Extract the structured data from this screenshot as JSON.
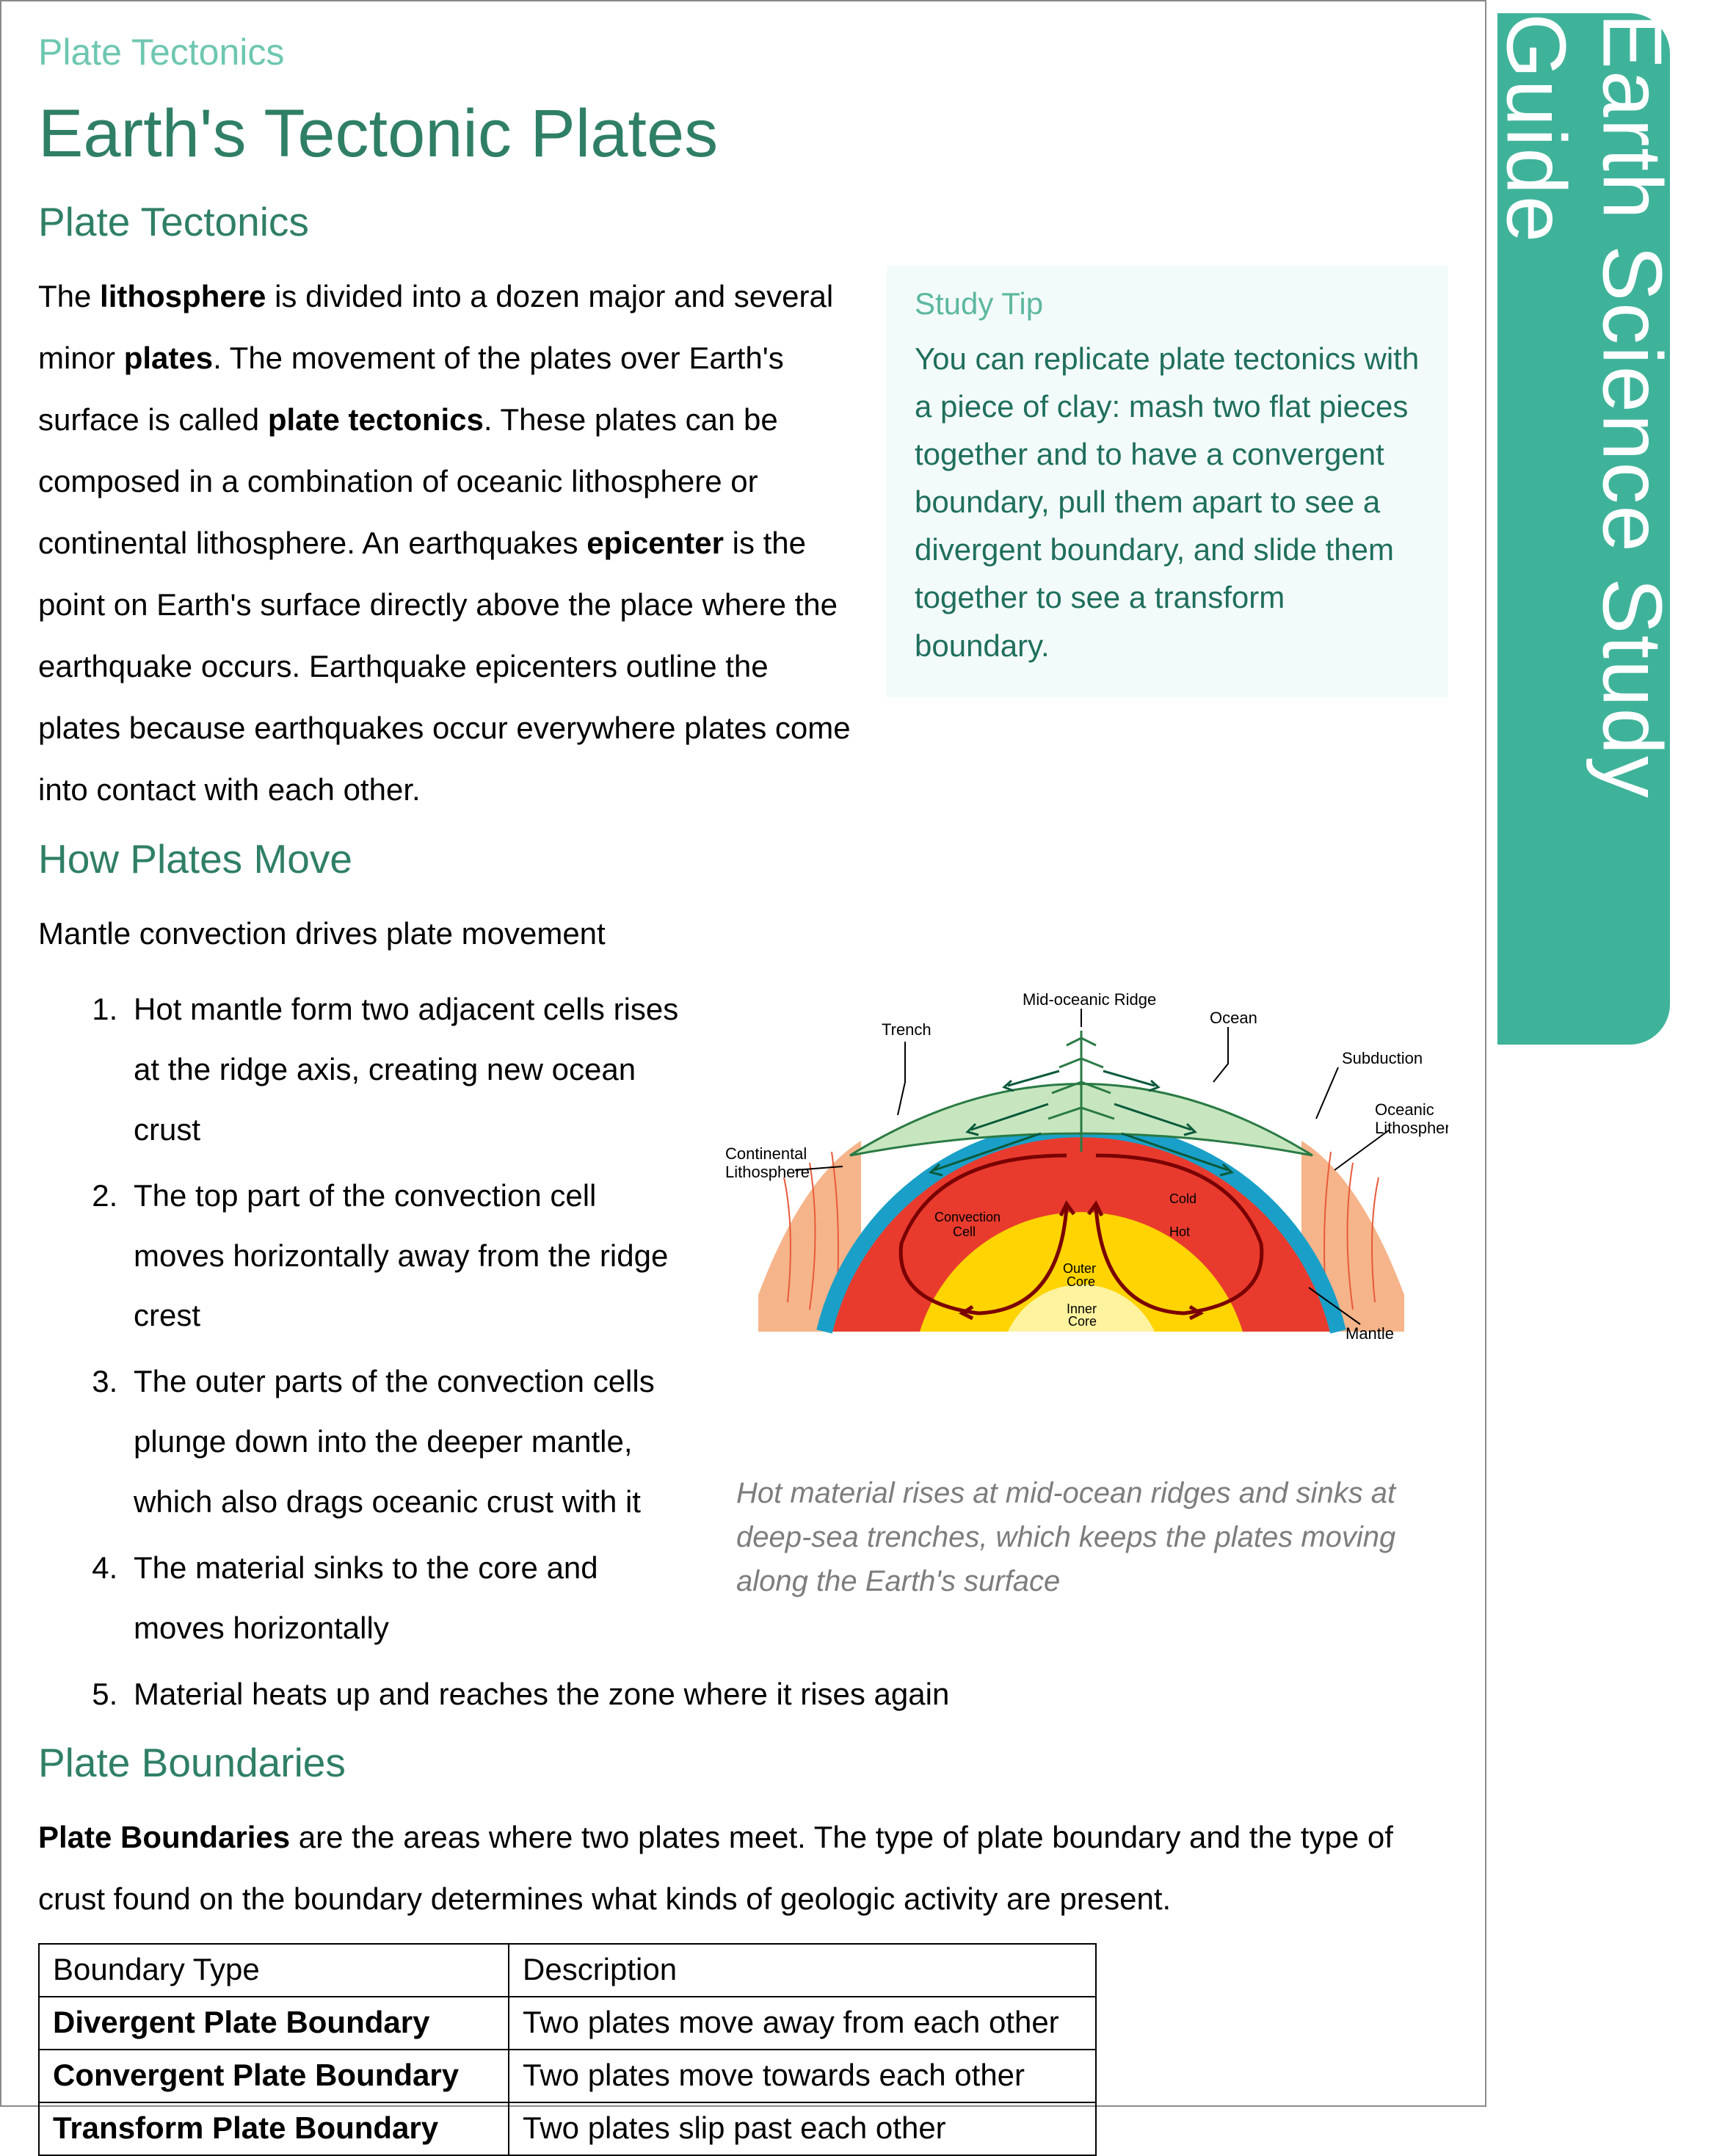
{
  "sideTab": "Earth Science Study Guide",
  "kicker": "Plate Tectonics",
  "title": "Earth's Tectonic Plates",
  "sections": {
    "s1_title": "Plate Tectonics",
    "s1_body_html": "The <b>lithosphere</b> is divided into a dozen major and several minor <b>plates</b>. The movement of the plates over Earth's surface is called <b>plate tectonics</b>. These plates can be composed in a combination of oceanic lithosphere or continental lithosphere. An earthquakes <b>epicenter</b> is the point on Earth's surface directly above the place where the earthquake occurs. Earthquake epicenters outline the plates because earthquakes occur everywhere plates come into contact with each other.",
    "s2_title": "How Plates Move",
    "s2_intro": "Mantle convection drives plate movement",
    "s2_steps": [
      "Hot mantle form two adjacent cells rises at the ridge axis, creating new ocean crust",
      "The top part of the convection cell moves horizontally away from the ridge crest",
      "The outer parts of the convection cells plunge down into the deeper mantle, which also drags oceanic crust with it",
      "The material sinks to the core and moves horizontally",
      "Material heats up and reaches the zone where it rises again"
    ],
    "s3_title": "Plate Boundaries",
    "s3_body_html": "<b>Plate Boundaries</b> are the areas where two plates meet. The type of plate boundary and the type of crust found on the boundary determines what kinds of geologic activity are present."
  },
  "tip": {
    "title": "Study Tip",
    "text": "You can replicate plate tectonics with a piece of clay: mash two flat pieces together and to have a convergent boundary, pull them apart to see a divergent boundary, and slide them together to see a transform boundary."
  },
  "figure": {
    "caption": "Hot material rises at mid-ocean ridges and sinks at deep-sea trenches, which keeps the plates moving along the Earth's surface",
    "labels": {
      "trench": "Trench",
      "mid_ridge": "Mid-oceanic Ridge",
      "ocean": "Ocean",
      "subduction": "Subduction",
      "oceanic_litho": "Oceanic\nLithosphere",
      "cont_litho": "Continental\nLithosphere",
      "mantle": "Mantle",
      "convection": "Convection\nCell",
      "cold": "Cold",
      "hot": "Hot",
      "outer_core": "Outer\nCore",
      "inner_core": "Inner\nCore"
    },
    "colors": {
      "ocean_surface": "#c7e6c0",
      "ocean_edge": "#2a7a44",
      "crust": "#1aa0c8",
      "mantle_outer": "#f08a4a",
      "mantle_mid": "#e83b2e",
      "outer_core": "#ffd400",
      "inner_core": "#fff3a0",
      "side_rock": "#f6b48a",
      "veins": "#e85a3a"
    }
  },
  "table": {
    "headers": [
      "Boundary Type",
      "Description"
    ],
    "rows": [
      [
        "Divergent Plate Boundary",
        "Two plates move away from each other"
      ],
      [
        "Convergent Plate Boundary",
        "Two plates move towards each other"
      ],
      [
        "Transform Plate Boundary",
        "Two plates slip past each other"
      ]
    ]
  },
  "style": {
    "accent": "#2f7f66",
    "accent_light": "#6ec7b0",
    "tab_bg": "#3fb39a",
    "tip_bg": "#f3fbfa",
    "tip_text": "#1f6f5c",
    "body_fontsize": 42,
    "h1_fontsize": 92,
    "h2_fontsize": 55
  }
}
